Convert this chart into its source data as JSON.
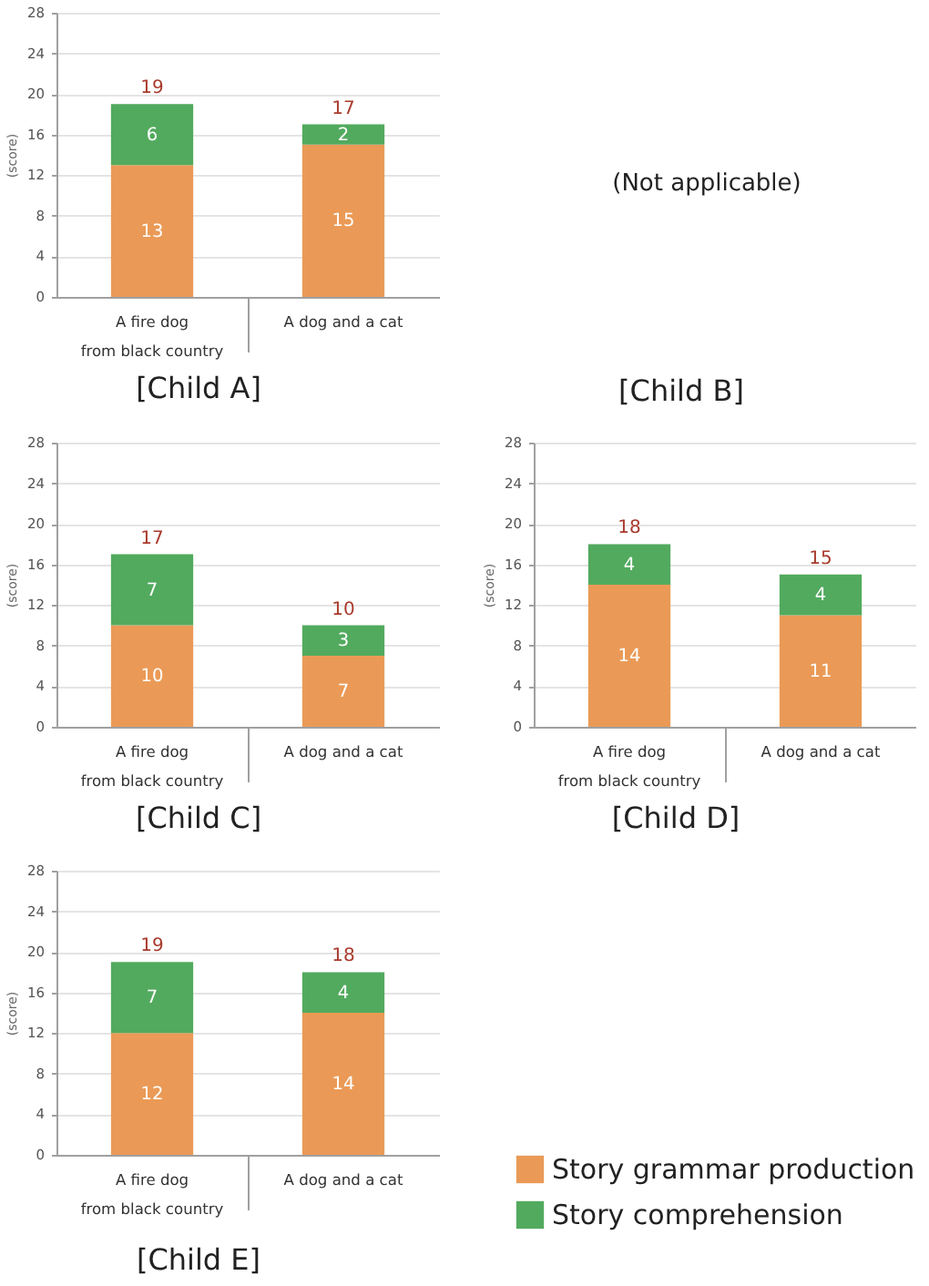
{
  "chart_data": [
    {
      "type": "bar",
      "title": "[Child A]",
      "ylabel": "(score)",
      "categories": [
        "A fire dog\nfrom black country",
        "A dog and a cat"
      ],
      "stacked": true,
      "series": [
        {
          "color": "#ea9a56",
          "values": [
            13,
            15
          ]
        },
        {
          "color": "#52aa5e",
          "values": [
            6,
            2
          ]
        }
      ],
      "data_labels": true,
      "totals": [
        "19",
        "17"
      ],
      "ylim": [
        0,
        28
      ],
      "yticks": [
        0,
        4,
        8,
        12,
        16,
        20,
        24,
        28
      ],
      "grid": "y"
    },
    {
      "type": "other",
      "title": "[Child B]",
      "annotations": [
        "(Not applicable)"
      ]
    },
    {
      "type": "bar",
      "title": "[Child C]",
      "ylabel": "(score)",
      "categories": [
        "A fire dog\nfrom black country",
        "A dog and a cat"
      ],
      "stacked": true,
      "series": [
        {
          "color": "#ea9a56",
          "values": [
            10,
            7
          ]
        },
        {
          "color": "#52aa5e",
          "values": [
            7,
            3
          ]
        }
      ],
      "data_labels": true,
      "totals": [
        "17",
        "10"
      ],
      "ylim": [
        0,
        28
      ],
      "yticks": [
        0,
        4,
        8,
        12,
        16,
        20,
        24,
        28
      ],
      "grid": "y"
    },
    {
      "type": "bar",
      "title": "[Child D]",
      "ylabel": "(score)",
      "categories": [
        "A fire dog\nfrom black country",
        "A dog and a cat"
      ],
      "stacked": true,
      "series": [
        {
          "color": "#ea9a56",
          "values": [
            14,
            11
          ]
        },
        {
          "color": "#52aa5e",
          "values": [
            4,
            4
          ]
        }
      ],
      "data_labels": true,
      "totals": [
        "18",
        "15"
      ],
      "ylim": [
        0,
        28
      ],
      "yticks": [
        0,
        4,
        8,
        12,
        16,
        20,
        24,
        28
      ],
      "grid": "y"
    },
    {
      "type": "bar",
      "title": "[Child E]",
      "ylabel": "(score)",
      "categories": [
        "A fire dog\nfrom black country",
        "A dog and a cat"
      ],
      "stacked": true,
      "series": [
        {
          "name": "Story grammar production",
          "color": "#ea9a56",
          "values": [
            12,
            14
          ]
        },
        {
          "name": "Story comprehension",
          "color": "#52aa5e",
          "values": [
            7,
            4
          ]
        }
      ],
      "data_labels": true,
      "totals": [
        "19",
        "18"
      ],
      "ylim": [
        0,
        28
      ],
      "yticks": [
        0,
        4,
        8,
        12,
        16,
        20,
        24,
        28
      ],
      "grid": "y",
      "legend": "right"
    }
  ]
}
